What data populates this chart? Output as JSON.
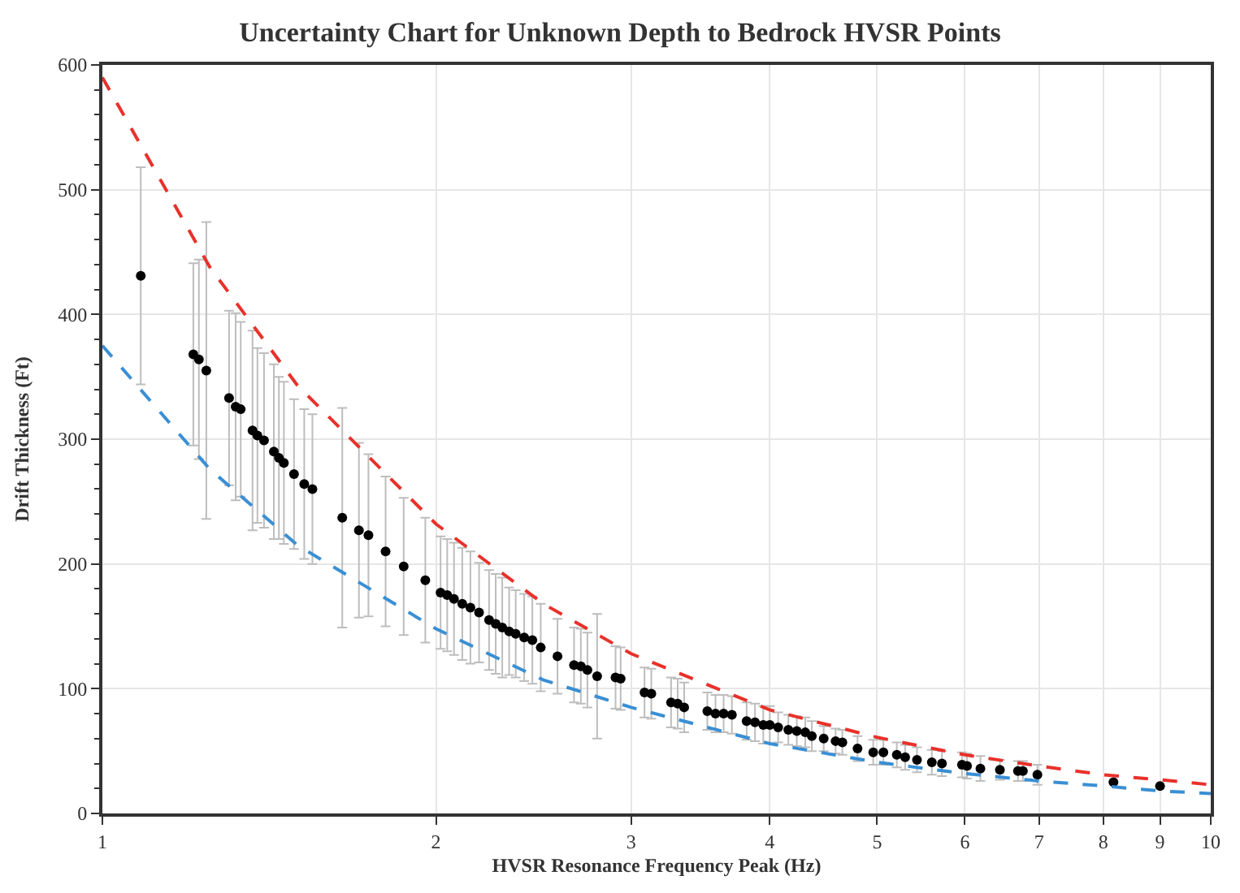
{
  "chart_data": {
    "type": "scatter",
    "title": "Uncertainty Chart for Unknown Depth to Bedrock HVSR Points",
    "xlabel": "HVSR Resonance Frequency Peak (Hz)",
    "ylabel": "Drift Thickness (Ft)",
    "log": "x",
    "grid": true,
    "marker": "circle",
    "xlim": [
      1,
      10
    ],
    "xticks": [
      1,
      2,
      3,
      4,
      5,
      6,
      7,
      8,
      9,
      10
    ],
    "ylim": [
      0,
      600
    ],
    "yticks": [
      0,
      100,
      200,
      300,
      400,
      500,
      600
    ],
    "series": [
      {
        "color": "#000000",
        "x": [
          1.083,
          1.208,
          1.222,
          1.241,
          1.301,
          1.319,
          1.333,
          1.366,
          1.38,
          1.399,
          1.428,
          1.443,
          1.458,
          1.489,
          1.521,
          1.547,
          1.646,
          1.704,
          1.738,
          1.801,
          1.87,
          1.956,
          2.019,
          2.047,
          2.076,
          2.112,
          2.148,
          2.187,
          2.233,
          2.264,
          2.295,
          2.328,
          2.36,
          2.402,
          2.443,
          2.486,
          2.574,
          2.664,
          2.702,
          2.739,
          2.795,
          2.904,
          2.935,
          3.084,
          3.128,
          3.259,
          3.304,
          3.349,
          3.514,
          3.574,
          3.635,
          3.698,
          3.813,
          3.88,
          3.947,
          4.001,
          4.071,
          4.158,
          4.232,
          4.307,
          4.366,
          4.475,
          4.587,
          4.652,
          4.801,
          4.96,
          5.066,
          5.209,
          5.3,
          5.432,
          5.602,
          5.721,
          5.964,
          6.027,
          6.197,
          6.453,
          6.7,
          6.769,
          6.976,
          8.17,
          9.0
        ],
        "values": [
          431,
          368,
          364,
          355,
          333,
          326,
          324,
          307,
          303,
          299,
          290,
          285,
          281,
          272,
          264,
          260,
          237,
          227,
          223,
          210,
          198,
          187,
          177,
          175,
          172,
          168,
          165,
          161,
          155,
          152,
          149,
          146,
          144,
          141,
          139,
          133,
          126,
          119,
          118,
          115,
          110,
          109,
          108,
          97,
          96,
          89,
          88,
          85,
          82,
          80,
          80,
          79,
          74,
          73,
          71,
          71,
          69,
          67,
          66,
          65,
          62,
          60,
          58,
          57,
          52,
          49,
          49,
          47,
          45,
          43,
          41,
          40,
          39,
          38,
          36,
          35,
          34,
          34,
          31,
          25,
          22
        ],
        "errors": [
          87,
          73,
          80,
          119,
          70,
          75,
          70,
          80,
          70,
          70,
          70,
          65,
          65,
          60,
          60,
          60,
          88,
          70,
          65,
          60,
          55,
          50,
          45,
          45,
          45,
          45,
          45,
          40,
          40,
          40,
          40,
          35,
          35,
          35,
          35,
          35,
          30,
          30,
          30,
          30,
          50,
          25,
          25,
          20,
          20,
          20,
          20,
          20,
          15,
          15,
          15,
          15,
          15,
          15,
          15,
          15,
          12,
          12,
          12,
          12,
          12,
          10,
          10,
          10,
          10,
          10,
          10,
          10,
          10,
          10,
          10,
          10,
          10,
          10,
          10,
          8,
          8,
          8,
          8,
          null,
          null
        ]
      },
      {
        "type": "line",
        "color": "#e8312a",
        "line_style": "dashed",
        "marker": "none",
        "x": [
          1,
          1.25,
          1.5,
          2,
          2.5,
          3,
          4,
          5,
          6,
          7,
          8,
          9,
          10
        ],
        "values": [
          590,
          438,
          343,
          232,
          168,
          128,
          83,
          61,
          47,
          38,
          31,
          27,
          23
        ]
      },
      {
        "type": "line",
        "color": "#3a8fd4",
        "line_style": "dashed",
        "marker": "none",
        "x": [
          1,
          1.25,
          1.5,
          2,
          2.5,
          3,
          4,
          5,
          6,
          7,
          8,
          9,
          10
        ],
        "values": [
          375,
          276,
          215,
          148,
          107,
          85,
          56,
          41,
          32,
          26,
          22,
          18,
          16
        ]
      }
    ]
  }
}
